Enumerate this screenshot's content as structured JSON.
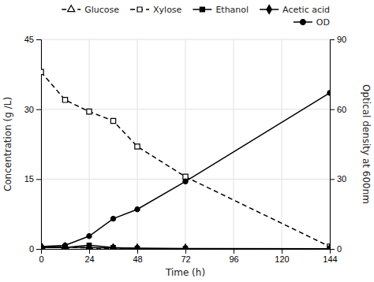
{
  "chart_data": {
    "type": "line",
    "x": [
      0,
      12,
      24,
      36,
      48,
      72,
      144
    ],
    "xlabel": "Time (h)",
    "ylabel": "Concentration (g /L)",
    "y2label": "Optical density at 600nm",
    "xlim": [
      0,
      144
    ],
    "xticks": [
      0,
      24,
      48,
      72,
      96,
      120,
      144
    ],
    "ylim": [
      0,
      45
    ],
    "yticks": [
      0,
      15,
      30,
      45
    ],
    "y2lim": [
      0,
      90
    ],
    "y2ticks": [
      0,
      30,
      60,
      90
    ],
    "grid": true,
    "legend": "upper right",
    "series": [
      {
        "name": "Glucose",
        "color": "black",
        "marker": "triangle-open",
        "line_style": "dashed",
        "values": [
          0.5,
          0.4,
          0.2,
          0.1,
          0.05,
          0.02,
          0.01
        ]
      },
      {
        "name": "Xylose",
        "color": "black",
        "marker": "square-open",
        "line_style": "dashed",
        "values": [
          38,
          32,
          29.5,
          27.5,
          22,
          15.5,
          0.5
        ]
      },
      {
        "name": "Ethanol",
        "color": "black",
        "marker": "square",
        "line_style": "solid",
        "values": [
          0.3,
          0.3,
          0.8,
          0.3,
          0.1,
          0.05,
          0.05
        ]
      },
      {
        "name": "Acetic acid",
        "color": "black",
        "marker": "diamond",
        "line_style": "solid",
        "values": [
          0.5,
          0.4,
          0.3,
          0.2,
          0.15,
          0.1,
          0.05
        ]
      },
      {
        "name": "OD",
        "color": "black",
        "marker": "circle",
        "line_style": "solid",
        "axis": "y2",
        "values": [
          1.0,
          1.5,
          5.5,
          13.0,
          17.0,
          29.0,
          67.0
        ]
      }
    ]
  }
}
